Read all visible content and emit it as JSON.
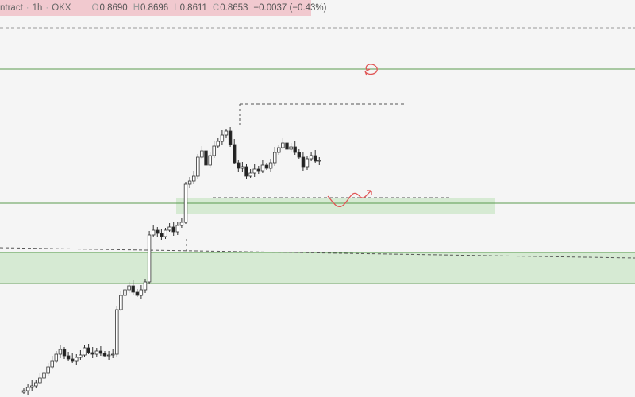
{
  "header": {
    "symbol": "ntract",
    "interval": "1h",
    "exchange": "OKX",
    "ohlc": [
      {
        "label": "O",
        "value": "0.8690"
      },
      {
        "label": "H",
        "value": "0.8696"
      },
      {
        "label": "L",
        "value": "0.8611"
      },
      {
        "label": "C",
        "value": "0.8653"
      }
    ],
    "change": "−0.0037 (−0.43%)"
  }
}
